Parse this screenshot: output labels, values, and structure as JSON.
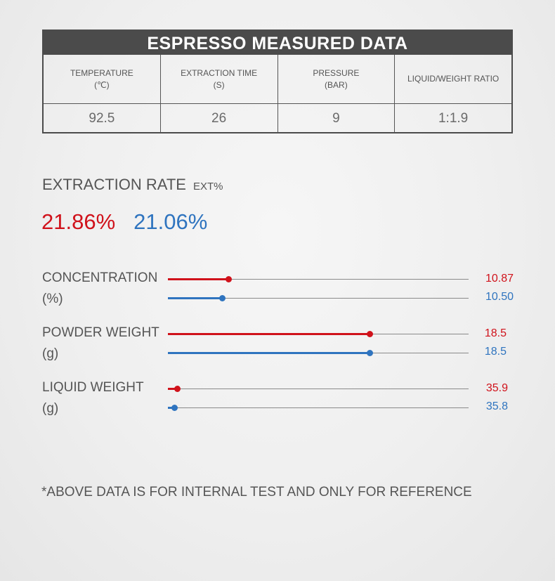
{
  "table": {
    "title": "ESPRESSO MEASURED DATA",
    "headers": [
      {
        "line1": "TEMPERATURE",
        "line2": "(℃)"
      },
      {
        "line1": "EXTRACTION TIME",
        "line2": "(S)"
      },
      {
        "line1": "PRESSURE",
        "line2": "(BAR)"
      },
      {
        "line1": "LIQUID/WEIGHT RATIO",
        "line2": ""
      }
    ],
    "values": [
      "92.5",
      "26",
      "9",
      "1:1.9"
    ]
  },
  "extraction": {
    "title": "EXTRACTION RATE",
    "unit": "EXT%",
    "red_value": "21.86%",
    "blue_value": "21.06%"
  },
  "metrics": [
    {
      "label_line1": "CONCENTRATION",
      "label_line2": "(%)",
      "red": "10.87",
      "blue": "10.50",
      "red_level": 0.2,
      "blue_level": 0.18
    },
    {
      "label_line1": "POWDER WEIGHT",
      "label_line2": "(g)",
      "red": "18.5",
      "blue": "18.5",
      "red_level": 0.67,
      "blue_level": 0.67
    },
    {
      "label_line1": "LIQUID WEIGHT",
      "label_line2": "(g)",
      "red": "35.9",
      "blue": "35.8",
      "red_level": 0.03,
      "blue_level": 0.02
    }
  ],
  "note": "*ABOVE DATA IS FOR INTERNAL TEST AND ONLY FOR REFERENCE",
  "colors": {
    "red": "#d0121b",
    "blue": "#2f74bf",
    "header_bg": "#4b4b4b"
  }
}
